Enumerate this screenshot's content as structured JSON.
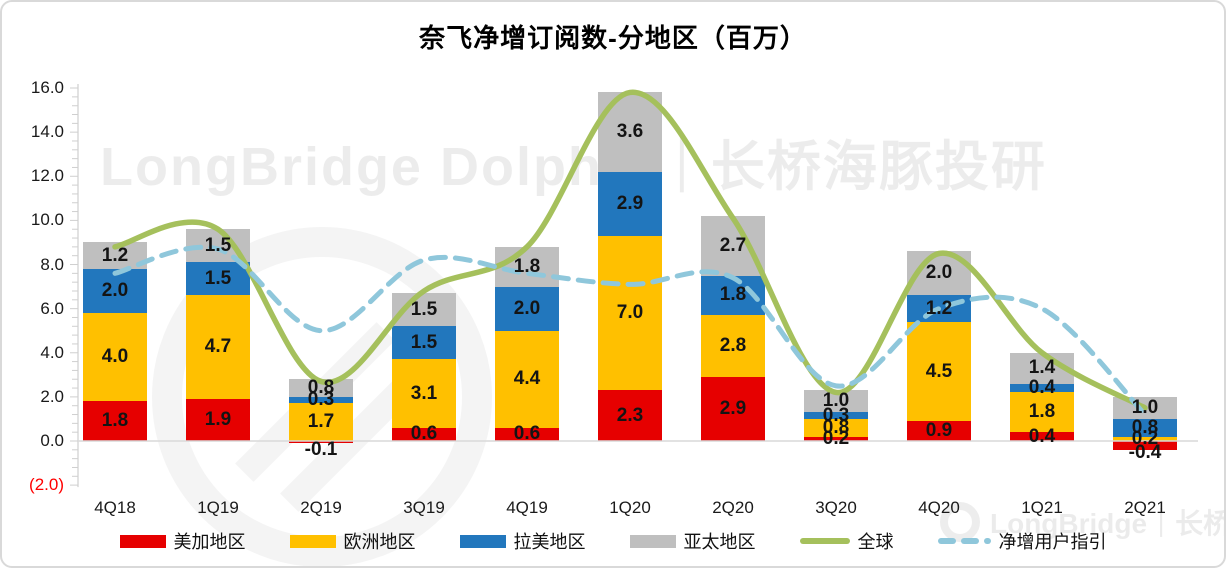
{
  "watermark": {
    "center": "LongBridge Dolphin｜长桥海豚投研",
    "bottom_right": "LongBridge｜长桥"
  },
  "chart_data": {
    "type": "bar",
    "subtype": "stacked-bars-with-smooth-lines",
    "title": "奈飞净增订阅数-分地区（百万）",
    "categories": [
      "4Q18",
      "1Q19",
      "2Q19",
      "3Q19",
      "4Q19",
      "1Q20",
      "2Q20",
      "3Q20",
      "4Q20",
      "1Q21",
      "2Q21"
    ],
    "series": [
      {
        "key": "ucan",
        "name": "美加地区",
        "type": "bar",
        "color": "#E60000",
        "values": [
          1.8,
          1.9,
          -0.1,
          0.6,
          0.6,
          2.3,
          2.9,
          0.2,
          0.9,
          0.4,
          -0.4
        ]
      },
      {
        "key": "europe",
        "name": "欧洲地区",
        "type": "bar",
        "color": "#FFC000",
        "values": [
          4.0,
          4.7,
          1.7,
          3.1,
          4.4,
          7.0,
          2.8,
          0.8,
          4.5,
          1.8,
          0.2
        ]
      },
      {
        "key": "latam",
        "name": "拉美地区",
        "type": "bar",
        "color": "#2277BD",
        "values": [
          2.0,
          1.5,
          0.3,
          1.5,
          2.0,
          2.9,
          1.8,
          0.3,
          1.2,
          0.4,
          0.8
        ]
      },
      {
        "key": "apac",
        "name": "亚太地区",
        "type": "bar",
        "color": "#BFBFBF",
        "values": [
          1.2,
          1.5,
          0.8,
          1.5,
          1.8,
          3.6,
          2.7,
          1.0,
          2.0,
          1.4,
          1.0
        ]
      },
      {
        "key": "global",
        "name": "全球",
        "type": "line",
        "color": "#A5C05C",
        "values": [
          8.8,
          9.6,
          2.7,
          6.8,
          8.8,
          15.8,
          10.1,
          2.2,
          8.5,
          4.0,
          1.5
        ]
      },
      {
        "key": "guidance",
        "name": "净增用户指引",
        "type": "dashed-line",
        "color": "#8FC7DB",
        "values": [
          7.6,
          8.7,
          5.0,
          8.2,
          7.6,
          7.1,
          7.4,
          2.5,
          6.0,
          6.0,
          1.2
        ]
      }
    ],
    "ylim": [
      -2,
      16
    ],
    "yticks": [
      {
        "label": "16.0",
        "value": 16
      },
      {
        "label": "14.0",
        "value": 14
      },
      {
        "label": "12.0",
        "value": 12
      },
      {
        "label": "10.0",
        "value": 10
      },
      {
        "label": "8.0",
        "value": 8
      },
      {
        "label": "6.0",
        "value": 6
      },
      {
        "label": "4.0",
        "value": 4
      },
      {
        "label": "2.0",
        "value": 2
      },
      {
        "label": "0.0",
        "value": 0
      },
      {
        "label": "(2.0)",
        "value": -2,
        "color": "#FF0000"
      }
    ],
    "grid": false,
    "legend_position": "bottom",
    "data_labels": true
  }
}
